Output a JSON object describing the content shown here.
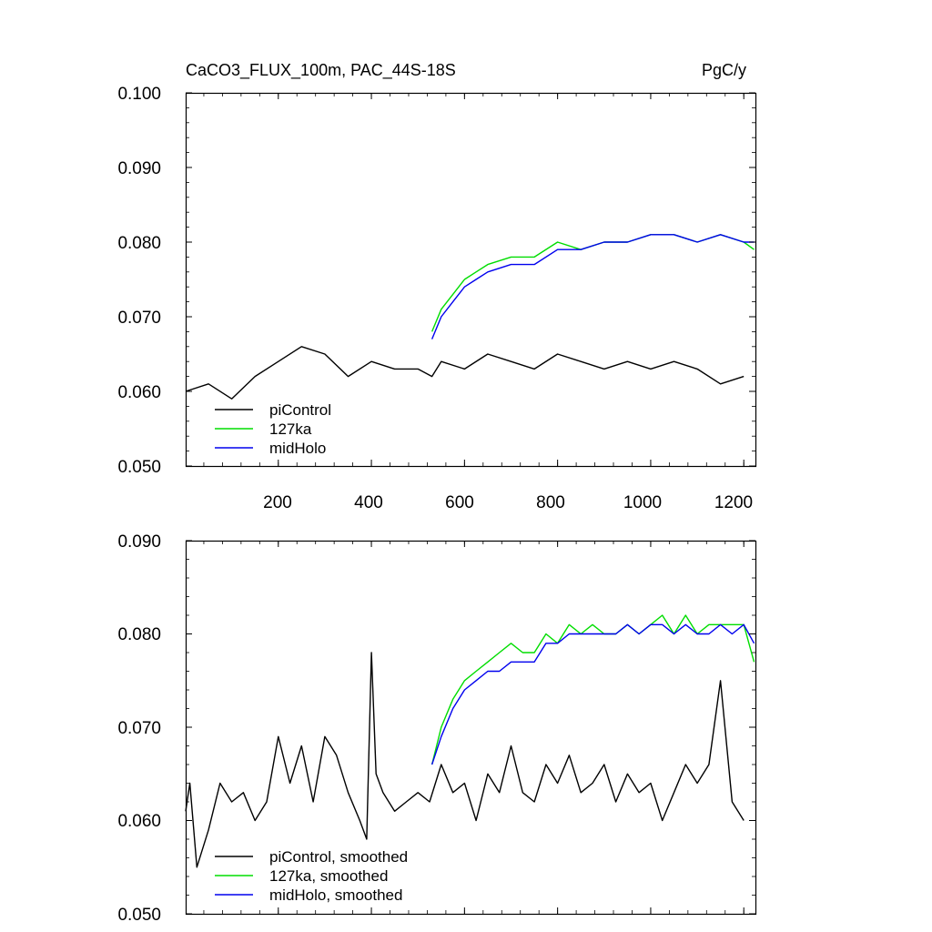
{
  "chart_data": [
    {
      "type": "line",
      "title": "CaCO3_FLUX_100m, PAC_44S-18S",
      "units": "PgC/y",
      "xlabel": "",
      "ylabel": "",
      "xlim": [
        1,
        1225
      ],
      "ylim": [
        0.05,
        0.1
      ],
      "xticks": [
        200,
        400,
        600,
        800,
        1000,
        1200
      ],
      "xtick_labels": [
        "200",
        "400",
        "600",
        "800",
        "1000",
        "1200"
      ],
      "yticks": [
        0.05,
        0.06,
        0.07,
        0.08,
        0.09,
        0.1
      ],
      "ytick_labels": [
        "0.050",
        "0.060",
        "0.070",
        "0.080",
        "0.090",
        "0.100"
      ],
      "legend_position": "bottom-left",
      "series": [
        {
          "name": "piControl",
          "color": "#000000",
          "x": [
            1,
            50,
            100,
            150,
            200,
            250,
            300,
            350,
            400,
            450,
            500,
            530,
            550,
            600,
            650,
            700,
            750,
            800,
            850,
            900,
            950,
            1000,
            1050,
            1100,
            1150,
            1200
          ],
          "y": [
            0.06,
            0.061,
            0.059,
            0.062,
            0.064,
            0.066,
            0.065,
            0.062,
            0.064,
            0.063,
            0.063,
            0.062,
            0.064,
            0.063,
            0.065,
            0.064,
            0.063,
            0.065,
            0.064,
            0.063,
            0.064,
            0.063,
            0.064,
            0.063,
            0.061,
            0.062
          ]
        },
        {
          "name": "127ka",
          "color": "#00dd00",
          "x": [
            530,
            550,
            575,
            600,
            625,
            650,
            700,
            750,
            800,
            850,
            900,
            950,
            1000,
            1050,
            1100,
            1150,
            1200,
            1222
          ],
          "y": [
            0.068,
            0.071,
            0.073,
            0.075,
            0.076,
            0.077,
            0.078,
            0.078,
            0.08,
            0.079,
            0.08,
            0.08,
            0.081,
            0.081,
            0.08,
            0.081,
            0.08,
            0.079
          ]
        },
        {
          "name": "midHolo",
          "color": "#0000ee",
          "x": [
            530,
            550,
            575,
            600,
            625,
            650,
            700,
            750,
            800,
            850,
            900,
            950,
            1000,
            1050,
            1100,
            1150,
            1200,
            1222
          ],
          "y": [
            0.067,
            0.07,
            0.072,
            0.074,
            0.075,
            0.076,
            0.077,
            0.077,
            0.079,
            0.079,
            0.08,
            0.08,
            0.081,
            0.081,
            0.08,
            0.081,
            0.08,
            0.08
          ]
        }
      ]
    },
    {
      "type": "line",
      "title": "",
      "xlabel": "",
      "ylabel": "",
      "xlim": [
        1,
        1225
      ],
      "ylim": [
        0.05,
        0.09
      ],
      "xticks": [
        200,
        400,
        600,
        800,
        1000,
        1200
      ],
      "yticks": [
        0.05,
        0.06,
        0.07,
        0.08,
        0.09
      ],
      "ytick_labels": [
        "0.050",
        "0.060",
        "0.070",
        "0.080",
        "0.090"
      ],
      "legend_position": "bottom-left",
      "series": [
        {
          "name": "piControl, smoothed",
          "color": "#000000",
          "x": [
            1,
            10,
            25,
            50,
            75,
            100,
            125,
            150,
            175,
            200,
            225,
            250,
            275,
            300,
            325,
            350,
            375,
            390,
            400,
            410,
            425,
            450,
            475,
            500,
            525,
            550,
            575,
            600,
            625,
            650,
            675,
            700,
            725,
            750,
            775,
            800,
            825,
            850,
            875,
            900,
            925,
            950,
            975,
            1000,
            1025,
            1050,
            1075,
            1100,
            1125,
            1150,
            1175,
            1200
          ],
          "y": [
            0.061,
            0.064,
            0.055,
            0.059,
            0.064,
            0.062,
            0.063,
            0.06,
            0.062,
            0.069,
            0.064,
            0.068,
            0.062,
            0.069,
            0.067,
            0.063,
            0.06,
            0.058,
            0.078,
            0.065,
            0.063,
            0.061,
            0.062,
            0.063,
            0.062,
            0.066,
            0.063,
            0.064,
            0.06,
            0.065,
            0.063,
            0.068,
            0.063,
            0.062,
            0.066,
            0.064,
            0.067,
            0.063,
            0.064,
            0.066,
            0.062,
            0.065,
            0.063,
            0.064,
            0.06,
            0.063,
            0.066,
            0.064,
            0.066,
            0.075,
            0.062,
            0.06
          ]
        },
        {
          "name": "127ka, smoothed",
          "color": "#00dd00",
          "x": [
            530,
            550,
            575,
            600,
            625,
            650,
            675,
            700,
            725,
            750,
            775,
            800,
            825,
            850,
            875,
            900,
            925,
            950,
            975,
            1000,
            1025,
            1050,
            1075,
            1100,
            1125,
            1150,
            1175,
            1200,
            1222
          ],
          "y": [
            0.066,
            0.07,
            0.073,
            0.075,
            0.076,
            0.077,
            0.078,
            0.079,
            0.078,
            0.078,
            0.08,
            0.079,
            0.081,
            0.08,
            0.081,
            0.08,
            0.08,
            0.081,
            0.08,
            0.081,
            0.082,
            0.08,
            0.082,
            0.08,
            0.081,
            0.081,
            0.081,
            0.081,
            0.077
          ]
        },
        {
          "name": "midHolo, smoothed",
          "color": "#0000ee",
          "x": [
            530,
            550,
            575,
            600,
            625,
            650,
            675,
            700,
            725,
            750,
            775,
            800,
            825,
            850,
            875,
            900,
            925,
            950,
            975,
            1000,
            1025,
            1050,
            1075,
            1100,
            1125,
            1150,
            1175,
            1200,
            1222
          ],
          "y": [
            0.066,
            0.069,
            0.072,
            0.074,
            0.075,
            0.076,
            0.076,
            0.077,
            0.077,
            0.077,
            0.079,
            0.079,
            0.08,
            0.08,
            0.08,
            0.08,
            0.08,
            0.081,
            0.08,
            0.081,
            0.081,
            0.08,
            0.081,
            0.08,
            0.08,
            0.081,
            0.08,
            0.081,
            0.079
          ]
        }
      ]
    }
  ]
}
